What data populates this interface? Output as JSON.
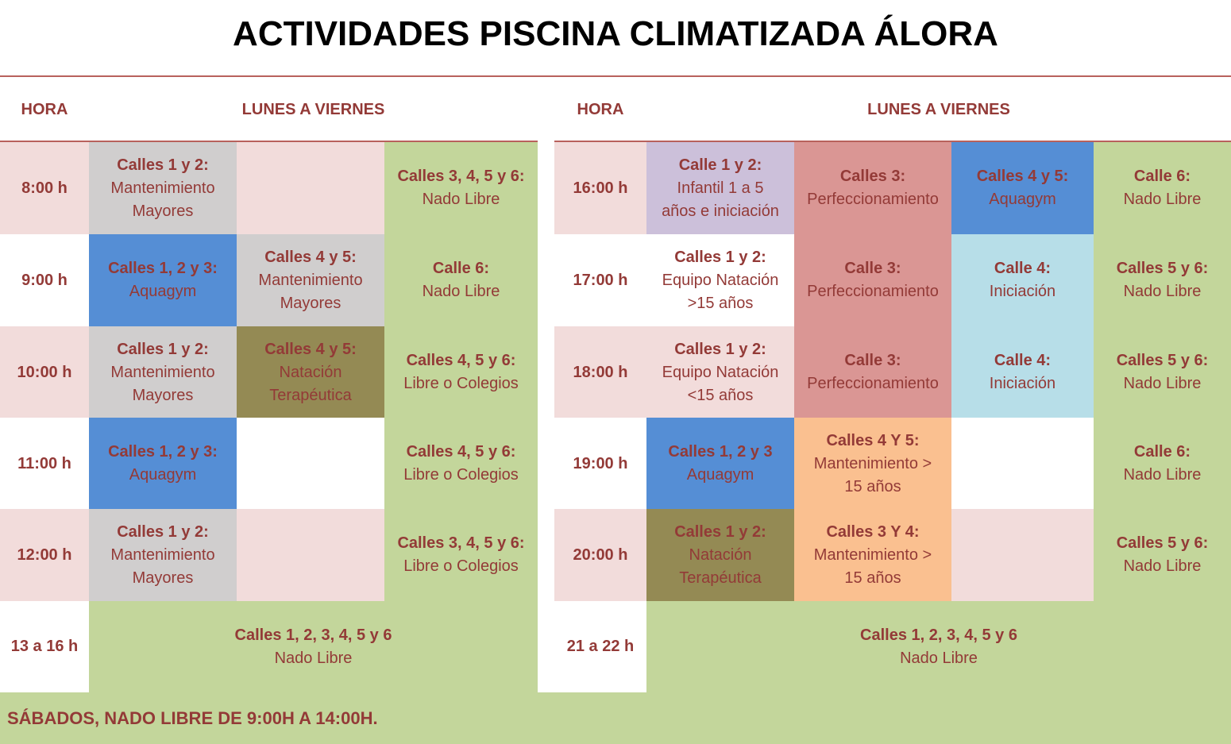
{
  "title": "ACTIVIDADES PISCINA CLIMATIZADA ÁLORA",
  "left": {
    "headers": {
      "hora": "HORA",
      "days": "LUNES A VIERNES"
    },
    "cells": [
      {
        "id": "l-h-8",
        "type": "hour",
        "lines": [
          "8:00 h"
        ],
        "color": "#f2dcdb"
      },
      {
        "id": "l-8-a",
        "lines": [
          "Calles 1 y 2:",
          "Mantenimiento",
          "Mayores"
        ],
        "color": "#d0cece"
      },
      {
        "id": "l-8-b",
        "lines": [],
        "color": "#f2dcdb"
      },
      {
        "id": "l-h-9",
        "type": "hour",
        "lines": [
          "9:00 h"
        ],
        "color": "#ffffff"
      },
      {
        "id": "l-9-a",
        "lines": [
          "Calles 1, 2 y 3:",
          "Aquagym"
        ],
        "color": "#558ed5"
      },
      {
        "id": "l-9-b",
        "lines": [
          "Calles 4 y 5:",
          "Mantenimiento",
          "Mayores"
        ],
        "color": "#d0cece"
      },
      {
        "id": "l-h-10",
        "type": "hour",
        "lines": [
          "10:00 h"
        ],
        "color": "#f2dcdb"
      },
      {
        "id": "l-10-a",
        "lines": [
          "Calles 1 y 2:",
          "Mantenimiento",
          "Mayores"
        ],
        "color": "#d0cece"
      },
      {
        "id": "l-10-b",
        "lines": [
          "Calles 4 y 5:",
          "Natación",
          "Terapéutica"
        ],
        "color": "#948a54"
      },
      {
        "id": "l-h-11",
        "type": "hour",
        "lines": [
          "11:00 h"
        ],
        "color": "#ffffff"
      },
      {
        "id": "l-11-a",
        "lines": [
          "Calles 1, 2 y 3:",
          "Aquagym"
        ],
        "color": "#558ed5"
      },
      {
        "id": "l-11-b",
        "lines": [],
        "color": "#ffffff"
      },
      {
        "id": "l-h-12",
        "type": "hour",
        "lines": [
          "12:00 h"
        ],
        "color": "#f2dcdb"
      },
      {
        "id": "l-12-a",
        "lines": [
          "Calles 1 y 2:",
          "Mantenimiento",
          "Mayores"
        ],
        "color": "#d0cece"
      },
      {
        "id": "l-12-b",
        "lines": [],
        "color": "#f2dcdb"
      },
      {
        "id": "l-h-13",
        "type": "hour",
        "lines": [
          "13 a 16 h"
        ],
        "color": "#ffffff"
      },
      {
        "id": "l-13-all",
        "lines": [
          "Calles 1, 2, 3, 4, 5 y 6",
          "Nado Libre"
        ],
        "color": "#c3d69b"
      },
      {
        "id": "l-8-c",
        "lines": [
          "Calles 3, 4, 5 y 6:",
          "Nado Libre"
        ],
        "color": "#c3d69b"
      },
      {
        "id": "l-9-c",
        "lines": [
          "Calle 6:",
          "Nado Libre"
        ],
        "color": "#c3d69b"
      },
      {
        "id": "l-10-c",
        "lines": [
          "Calles 4, 5 y 6:",
          "Libre o Colegios"
        ],
        "color": "#c3d69b"
      },
      {
        "id": "l-11-c",
        "lines": [
          "Calles 4, 5 y 6:",
          "Libre o Colegios"
        ],
        "color": "#c3d69b"
      },
      {
        "id": "l-12-c",
        "lines": [
          "Calles 3, 4, 5 y 6:",
          "Libre o Colegios"
        ],
        "color": "#c3d69b"
      }
    ]
  },
  "right": {
    "headers": {
      "hora": "HORA",
      "days": "LUNES A VIERNES"
    },
    "cells": [
      {
        "id": "r-h-16",
        "type": "hour",
        "lines": [
          "16:00 h"
        ],
        "color": "#f2dcdb"
      },
      {
        "id": "r-16-a",
        "lines": [
          "Calle 1 y 2:",
          "Infantil  1 a 5",
          "años e iniciación"
        ],
        "color": "#ccc0da"
      },
      {
        "id": "r-16-b",
        "lines": [
          "Calles 3:",
          "Perfeccionamiento"
        ],
        "color": "#da9694"
      },
      {
        "id": "r-16-c",
        "lines": [
          "Calles 4 y 5:",
          "Aquagym"
        ],
        "color": "#558ed5"
      },
      {
        "id": "r-16-d",
        "lines": [
          "Calle 6:",
          "Nado Libre"
        ],
        "color": "#c3d69b"
      },
      {
        "id": "r-h-17",
        "type": "hour",
        "lines": [
          "17:00 h"
        ],
        "color": "#ffffff"
      },
      {
        "id": "r-17-a",
        "lines": [
          "Calles 1 y 2:",
          "Equipo Natación",
          ">15 años"
        ],
        "color": "#ffffff"
      },
      {
        "id": "r-17-b",
        "lines": [
          "Calle 3:",
          "Perfeccionamiento"
        ],
        "color": "#da9694"
      },
      {
        "id": "r-17-c",
        "lines": [
          "Calle 4:",
          "Iniciación"
        ],
        "color": "#b7dee8"
      },
      {
        "id": "r-17-d",
        "lines": [
          "Calles 5 y 6:",
          "Nado Libre"
        ],
        "color": "#c3d69b"
      },
      {
        "id": "r-h-18",
        "type": "hour",
        "lines": [
          "18:00 h"
        ],
        "color": "#f2dcdb"
      },
      {
        "id": "r-18-a",
        "lines": [
          "Calles 1 y 2:",
          "Equipo Natación",
          "<15 años"
        ],
        "color": "#f2dcdb"
      },
      {
        "id": "r-18-b",
        "lines": [
          "Calle 3:",
          "Perfeccionamiento"
        ],
        "color": "#da9694"
      },
      {
        "id": "r-18-c",
        "lines": [
          "Calle 4:",
          "Iniciación"
        ],
        "color": "#b7dee8"
      },
      {
        "id": "r-18-d",
        "lines": [
          "Calles 5 y 6:",
          "Nado Libre"
        ],
        "color": "#c3d69b"
      },
      {
        "id": "r-h-19",
        "type": "hour",
        "lines": [
          "19:00 h"
        ],
        "color": "#ffffff"
      },
      {
        "id": "r-19-a",
        "lines": [
          "Calles 1, 2 y 3",
          "Aquagym"
        ],
        "color": "#558ed5"
      },
      {
        "id": "r-19-b",
        "lines": [
          "Calles 4 Y 5:",
          "Mantenimiento >",
          "15 años"
        ],
        "color": "#fac090"
      },
      {
        "id": "r-19-c",
        "lines": [],
        "color": "#ffffff"
      },
      {
        "id": "r-19-d",
        "lines": [
          "Calle 6:",
          "Nado Libre"
        ],
        "color": "#c3d69b"
      },
      {
        "id": "r-h-20",
        "type": "hour",
        "lines": [
          "20:00 h"
        ],
        "color": "#f2dcdb"
      },
      {
        "id": "r-20-a",
        "lines": [
          "Calles 1 y 2:",
          "Natación",
          "Terapéutica"
        ],
        "color": "#948a54"
      },
      {
        "id": "r-20-b",
        "lines": [
          "Calles 3 Y 4:",
          "Mantenimiento >",
          "15 años"
        ],
        "color": "#fac090"
      },
      {
        "id": "r-20-c",
        "lines": [],
        "color": "#f2dcdb"
      },
      {
        "id": "r-20-d",
        "lines": [
          "Calles 5 y 6:",
          "Nado Libre"
        ],
        "color": "#c3d69b"
      },
      {
        "id": "r-h-21",
        "type": "hour",
        "lines": [
          "21 a 22 h"
        ],
        "color": "#ffffff"
      },
      {
        "id": "r-21-all",
        "lines": [
          "Calles 1, 2, 3, 4, 5 y 6",
          "Nado Libre"
        ],
        "color": "#c3d69b"
      }
    ]
  },
  "footer": "SÁBADOS, NADO LIBRE DE 9:00H A 14:00H."
}
